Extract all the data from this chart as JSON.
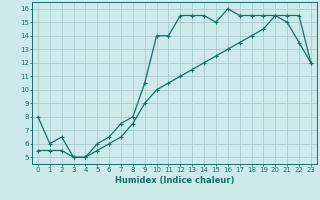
{
  "xlabel": "Humidex (Indice chaleur)",
  "ylabel": "",
  "bg_color": "#cceaea",
  "line_color": "#1a6e6a",
  "grid_color": "#aacccc",
  "xlim": [
    -0.5,
    23.5
  ],
  "ylim": [
    4.5,
    16.5
  ],
  "xticks": [
    0,
    1,
    2,
    3,
    4,
    5,
    6,
    7,
    8,
    9,
    10,
    11,
    12,
    13,
    14,
    15,
    16,
    17,
    18,
    19,
    20,
    21,
    22,
    23
  ],
  "yticks": [
    5,
    6,
    7,
    8,
    9,
    10,
    11,
    12,
    13,
    14,
    15,
    16
  ],
  "curve1_x": [
    0,
    1,
    2,
    3,
    4,
    5,
    6,
    7,
    8,
    9,
    10,
    11,
    12,
    13,
    14,
    15,
    16,
    17,
    18,
    19,
    20,
    21,
    22,
    23
  ],
  "curve1_y": [
    8.0,
    6.0,
    6.5,
    5.0,
    5.0,
    6.0,
    6.5,
    7.5,
    8.0,
    10.5,
    14.0,
    14.0,
    15.5,
    15.5,
    15.5,
    15.0,
    16.0,
    15.5,
    15.5,
    15.5,
    15.5,
    15.0,
    13.5,
    12.0
  ],
  "curve2_x": [
    0,
    1,
    2,
    3,
    4,
    5,
    6,
    7,
    8,
    9,
    10,
    11,
    12,
    13,
    14,
    15,
    16,
    17,
    18,
    19,
    20,
    21,
    22,
    23
  ],
  "curve2_y": [
    5.5,
    5.5,
    5.5,
    5.0,
    5.0,
    5.5,
    6.0,
    6.5,
    7.5,
    9.0,
    10.0,
    10.5,
    11.0,
    11.5,
    12.0,
    12.5,
    13.0,
    13.5,
    14.0,
    14.5,
    15.5,
    15.5,
    15.5,
    12.0
  ],
  "tick_fontsize": 5.0,
  "xlabel_fontsize": 6.0
}
